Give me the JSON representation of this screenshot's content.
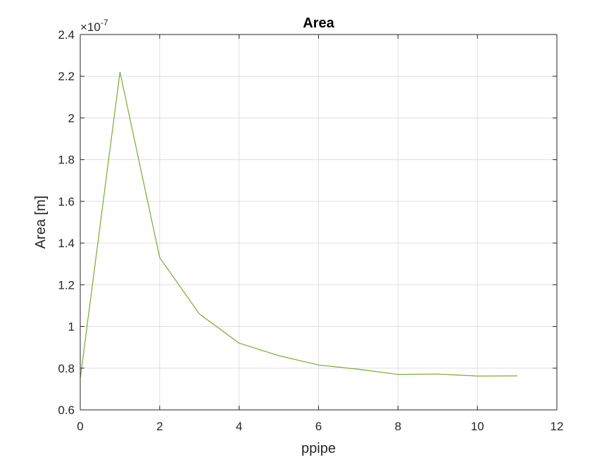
{
  "chart_data": {
    "type": "line",
    "title": "Area",
    "xlabel": "ppipe",
    "ylabel": "Area [m]",
    "y_exponent_label": {
      "base": "×10",
      "exponent": "-7"
    },
    "xlim": [
      0,
      12
    ],
    "ylim": [
      0.6,
      2.4
    ],
    "x_ticks": [
      0,
      2,
      4,
      6,
      8,
      10,
      12
    ],
    "y_ticks": [
      0.6,
      0.8,
      1,
      1.2,
      1.4,
      1.6,
      1.8,
      2,
      2.2,
      2.4
    ],
    "x_tick_labels": [
      "0",
      "2",
      "4",
      "6",
      "8",
      "10",
      "12"
    ],
    "y_tick_labels": [
      "0.6",
      "0.8",
      "1",
      "1.2",
      "1.4",
      "1.6",
      "1.8",
      "2",
      "2.2",
      "2.4"
    ],
    "grid": true,
    "series": [
      {
        "color": "#77ac30",
        "x": [
          0,
          1,
          2,
          3,
          4,
          5,
          6,
          7,
          8,
          9,
          10,
          11
        ],
        "y": [
          0.75,
          2.22,
          1.33,
          1.06,
          0.92,
          0.86,
          0.815,
          0.795,
          0.77,
          0.772,
          0.762,
          0.763
        ]
      }
    ]
  }
}
